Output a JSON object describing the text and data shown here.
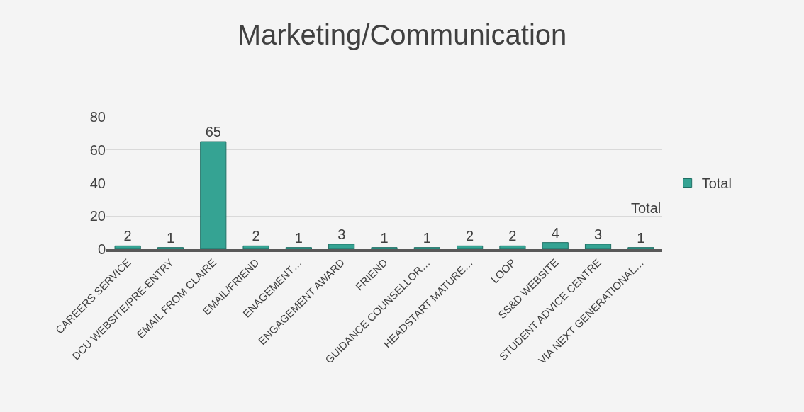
{
  "chart_data": {
    "type": "bar",
    "title": "Marketing/Communication",
    "categories": [
      "CAREERS SERVICE",
      "DCU WEBSITE/PRE-ENTRY",
      "EMAIL FROM CLAIRE",
      "EMAIL/FRIEND",
      "ENAGEMENT…",
      "ENGAGEMENT AWARD",
      "FRIEND",
      "GUIDANCE COUNSELLOR…",
      "HEADSTART MATURE…",
      "LOOP",
      "SS&D WEBSITE",
      "STUDENT ADVICE CENTRE",
      "VIA NEXT GENERATIONAL…"
    ],
    "series": [
      {
        "name": "Total",
        "color": "#35a393",
        "values": [
          2,
          1,
          65,
          2,
          1,
          3,
          1,
          1,
          2,
          2,
          4,
          3,
          1
        ]
      }
    ],
    "ylim": [
      0,
      80
    ],
    "yticks": [
      0,
      20,
      40,
      60,
      80
    ],
    "grid": "y",
    "legend": "right",
    "data_labels": true,
    "annotations": [
      "Total"
    ]
  }
}
